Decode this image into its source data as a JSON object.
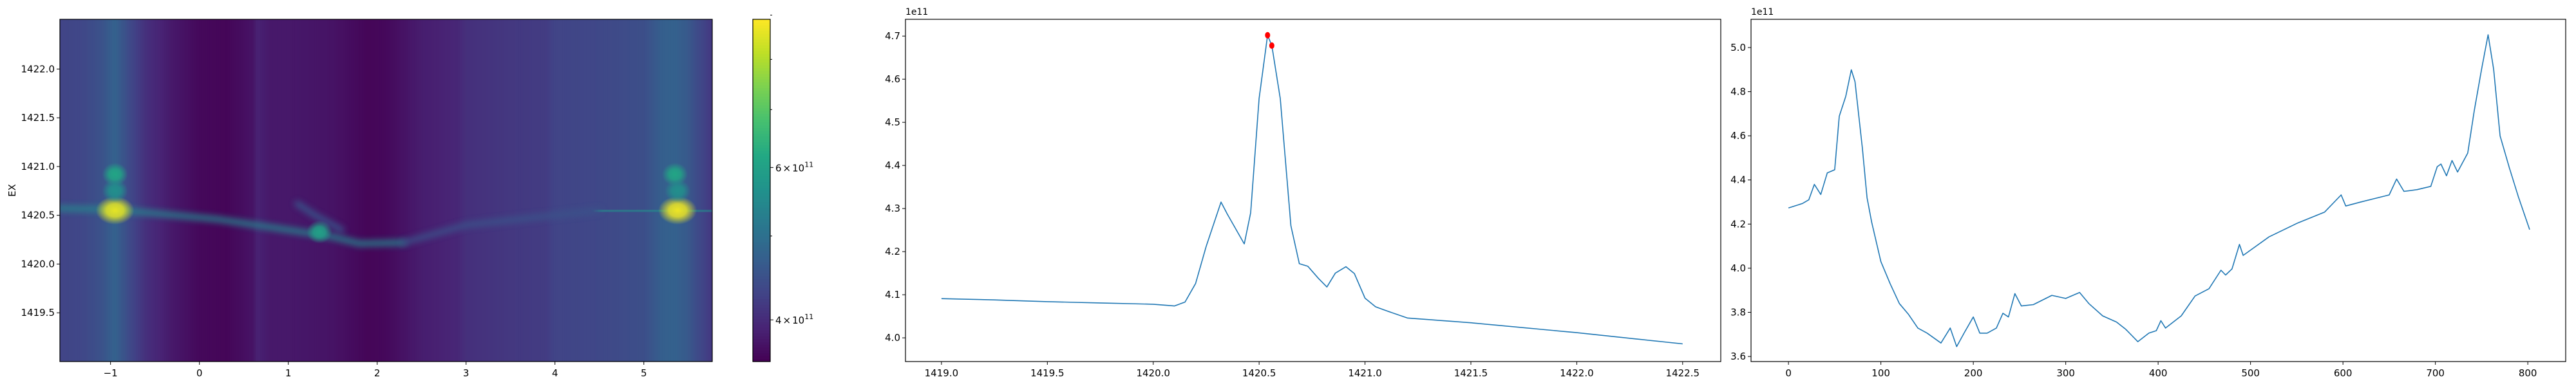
{
  "figure": {
    "background": "#ffffff",
    "line_color": "#1f77b4",
    "marker_color": "#ff0000"
  },
  "chart_data": [
    {
      "type": "heatmap",
      "xlabel": "",
      "ylabel": "EX",
      "xlim": [
        -1.57,
        5.77
      ],
      "ylim": [
        1419.0,
        1422.51
      ],
      "xticks": [
        {
          "value": -1,
          "label": "−1"
        },
        {
          "value": 0,
          "label": "0"
        },
        {
          "value": 1,
          "label": "1"
        },
        {
          "value": 2,
          "label": "2"
        },
        {
          "value": 3,
          "label": "3"
        },
        {
          "value": 4,
          "label": "4"
        },
        {
          "value": 5,
          "label": "5"
        }
      ],
      "yticks": [
        {
          "value": 1419.5,
          "label": "1419.5"
        },
        {
          "value": 1420.0,
          "label": "1420.0"
        },
        {
          "value": 1420.5,
          "label": "1420.5"
        },
        {
          "value": 1421.0,
          "label": "1421.0"
        },
        {
          "value": 1421.5,
          "label": "1421.5"
        },
        {
          "value": 1422.0,
          "label": "1422.0"
        }
      ],
      "colormap": "viridis",
      "colorbar": {
        "scale": "log",
        "range": [
          358000000000.0,
          890000000000.0
        ],
        "ticks": [
          {
            "value": 400000000000.0,
            "mantissa": "4",
            "times": "×",
            "base": "10",
            "exponent": "11"
          },
          {
            "value": 600000000000.0,
            "mantissa": "6",
            "times": "×",
            "base": "10",
            "exponent": "11"
          }
        ],
        "minor_ticks": [
          500000000000.0,
          700000000000.0,
          800000000000.0,
          900000000000.0
        ]
      },
      "value_unit": 100000000000.0,
      "column_profile": {
        "x": [
          -1.57,
          -1.3,
          -1.1,
          -0.95,
          -0.8,
          -0.6,
          -0.3,
          0,
          0.3,
          0.6,
          0.65,
          0.8,
          1.0,
          1.5,
          1.9,
          2.1,
          2.5,
          2.9,
          3.0,
          3.5,
          3.9,
          4.0,
          4.5,
          5.0,
          5.2,
          5.35,
          5.5,
          5.6,
          5.77
        ],
        "values": [
          4.3,
          4.35,
          4.5,
          4.75,
          4.4,
          4.05,
          3.8,
          3.65,
          3.62,
          3.75,
          3.9,
          3.8,
          3.8,
          3.75,
          3.62,
          3.65,
          3.85,
          3.95,
          4.05,
          4.15,
          4.2,
          4.3,
          4.35,
          4.45,
          4.7,
          4.75,
          4.6,
          4.4,
          4.15
        ]
      },
      "ridges": [
        {
          "value": 5.4,
          "points": [
            [
              -1.57,
              1420.57
            ],
            [
              -1.0,
              1420.56
            ],
            [
              -0.5,
              1420.52
            ],
            [
              0.2,
              1420.46
            ],
            [
              1.0,
              1420.35
            ],
            [
              1.5,
              1420.28
            ],
            [
              1.8,
              1420.21
            ],
            [
              2.3,
              1420.22
            ]
          ]
        },
        {
          "value": 4.6,
          "points": [
            [
              1.1,
              1420.62
            ],
            [
              1.3,
              1420.5
            ],
            [
              1.6,
              1420.35
            ]
          ]
        },
        {
          "value": 4.5,
          "points": [
            [
              2.3,
              1420.22
            ],
            [
              3.0,
              1420.4
            ],
            [
              3.5,
              1420.45
            ],
            [
              4.5,
              1420.55
            ]
          ]
        },
        {
          "value": 5.6,
          "points": [
            [
              4.5,
              1420.55
            ],
            [
              5.0,
              1420.55
            ],
            [
              5.4,
              1420.55
            ],
            [
              5.77,
              1420.54
            ]
          ]
        }
      ],
      "hotspots": [
        {
          "x": -0.95,
          "y": 1420.55,
          "value": 8.6
        },
        {
          "x": -0.95,
          "y": 1420.92,
          "value": 6.1
        },
        {
          "x": -0.95,
          "y": 1420.75,
          "value": 5.6
        },
        {
          "x": 1.35,
          "y": 1420.33,
          "value": 6.0
        },
        {
          "x": 5.38,
          "y": 1420.55,
          "value": 8.7
        },
        {
          "x": 5.35,
          "y": 1420.92,
          "value": 6.1
        },
        {
          "x": 5.38,
          "y": 1420.75,
          "value": 5.6
        }
      ]
    },
    {
      "type": "line",
      "xlabel": "",
      "ylabel": "",
      "offset_text": "1e11",
      "xlim": [
        1418.83,
        1422.68
      ],
      "ylim": [
        3.945,
        4.739
      ],
      "xticks": [
        {
          "value": 1419.0,
          "label": "1419.0"
        },
        {
          "value": 1419.5,
          "label": "1419.5"
        },
        {
          "value": 1420.0,
          "label": "1420.0"
        },
        {
          "value": 1420.5,
          "label": "1420.5"
        },
        {
          "value": 1421.0,
          "label": "1421.0"
        },
        {
          "value": 1421.5,
          "label": "1421.5"
        },
        {
          "value": 1422.0,
          "label": "1422.0"
        },
        {
          "value": 1422.5,
          "label": "1422.5"
        }
      ],
      "yticks": [
        {
          "value": 4.0,
          "label": "4.0"
        },
        {
          "value": 4.1,
          "label": "4.1"
        },
        {
          "value": 4.2,
          "label": "4.2"
        },
        {
          "value": 4.3,
          "label": "4.3"
        },
        {
          "value": 4.4,
          "label": "4.4"
        },
        {
          "value": 4.5,
          "label": "4.5"
        },
        {
          "value": 4.6,
          "label": "4.6"
        },
        {
          "value": 4.7,
          "label": "4.7"
        }
      ],
      "x": [
        1419.0,
        1419.25,
        1419.5,
        1419.75,
        1420.0,
        1420.1,
        1420.15,
        1420.2,
        1420.25,
        1420.32,
        1420.35,
        1420.43,
        1420.46,
        1420.5,
        1420.54,
        1420.56,
        1420.6,
        1420.65,
        1420.69,
        1420.73,
        1420.78,
        1420.82,
        1420.86,
        1420.91,
        1420.95,
        1421.0,
        1421.05,
        1421.1,
        1421.2,
        1421.5,
        1422.0,
        1422.5
      ],
      "y": [
        4.091,
        4.088,
        4.084,
        4.081,
        4.078,
        4.074,
        4.083,
        4.126,
        4.212,
        4.315,
        4.287,
        4.218,
        4.29,
        4.555,
        4.702,
        4.678,
        4.555,
        4.26,
        4.172,
        4.166,
        4.138,
        4.118,
        4.15,
        4.165,
        4.149,
        4.092,
        4.072,
        4.063,
        4.046,
        4.035,
        4.012,
        3.986
      ],
      "markers": {
        "type": "scatter",
        "points": [
          [
            1420.54,
            4.702
          ],
          [
            1420.56,
            4.678
          ]
        ]
      }
    },
    {
      "type": "line",
      "xlabel": "",
      "ylabel": "",
      "offset_text": "1e11",
      "xlim": [
        -40.5,
        841
      ],
      "ylim": [
        3.577,
        5.128
      ],
      "xticks": [
        {
          "value": 0,
          "label": "0"
        },
        {
          "value": 100,
          "label": "100"
        },
        {
          "value": 200,
          "label": "200"
        },
        {
          "value": 300,
          "label": "300"
        },
        {
          "value": 400,
          "label": "400"
        },
        {
          "value": 500,
          "label": "500"
        },
        {
          "value": 600,
          "label": "600"
        },
        {
          "value": 700,
          "label": "700"
        },
        {
          "value": 800,
          "label": "800"
        }
      ],
      "yticks": [
        {
          "value": 3.6,
          "label": "3.6"
        },
        {
          "value": 3.8,
          "label": "3.8"
        },
        {
          "value": 4.0,
          "label": "4.0"
        },
        {
          "value": 4.2,
          "label": "4.2"
        },
        {
          "value": 4.4,
          "label": "4.4"
        },
        {
          "value": 4.6,
          "label": "4.6"
        },
        {
          "value": 4.8,
          "label": "4.8"
        },
        {
          "value": 5.0,
          "label": "5.0"
        }
      ],
      "x": [
        0,
        15,
        22,
        28,
        35,
        42,
        50,
        55,
        62,
        68,
        72,
        80,
        85,
        90,
        100,
        110,
        120,
        130,
        140,
        150,
        165,
        175,
        182,
        190,
        200,
        207,
        215,
        225,
        232,
        238,
        245,
        252,
        265,
        285,
        300,
        315,
        325,
        340,
        355,
        365,
        378,
        390,
        398,
        403,
        408,
        425,
        440,
        455,
        468,
        473,
        480,
        488,
        492,
        520,
        550,
        580,
        598,
        603,
        620,
        650,
        658,
        666,
        680,
        695,
        702,
        706,
        712,
        718,
        724,
        735,
        742,
        750,
        757,
        763,
        770,
        780,
        790,
        802
      ],
      "y": [
        4.273,
        4.293,
        4.31,
        4.38,
        4.334,
        4.432,
        4.446,
        4.689,
        4.779,
        4.899,
        4.846,
        4.544,
        4.32,
        4.209,
        4.03,
        3.93,
        3.84,
        3.79,
        3.729,
        3.706,
        3.661,
        3.729,
        3.645,
        3.706,
        3.779,
        3.706,
        3.706,
        3.729,
        3.796,
        3.779,
        3.885,
        3.829,
        3.835,
        3.877,
        3.863,
        3.89,
        3.84,
        3.784,
        3.756,
        3.723,
        3.667,
        3.706,
        3.717,
        3.762,
        3.729,
        3.784,
        3.874,
        3.907,
        3.991,
        3.969,
        3.997,
        4.108,
        4.058,
        4.142,
        4.203,
        4.254,
        4.332,
        4.282,
        4.301,
        4.332,
        4.404,
        4.348,
        4.356,
        4.371,
        4.46,
        4.472,
        4.419,
        4.488,
        4.436,
        4.522,
        4.712,
        4.902,
        5.058,
        4.902,
        4.6,
        4.455,
        4.321,
        4.175
      ]
    }
  ]
}
